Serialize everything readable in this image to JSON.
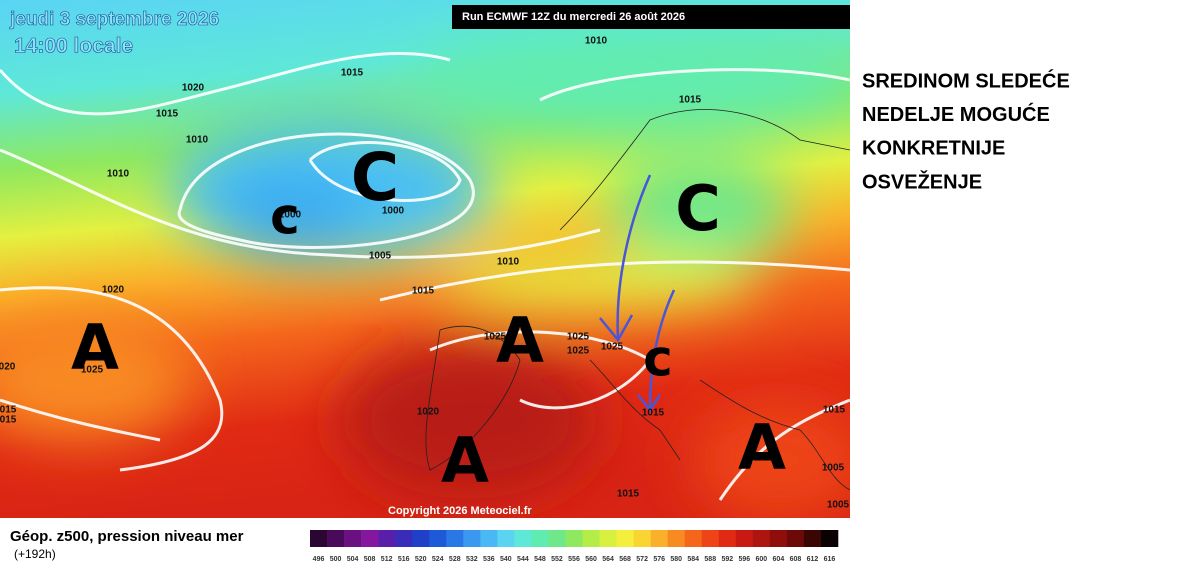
{
  "header": {
    "date": "jeudi 3 septembre 2026",
    "time": "14:00 locale",
    "run": "Run ECMWF 12Z du mercredi 26 août 2026"
  },
  "map": {
    "isobar_labels": [
      "1010",
      "1015",
      "1020",
      "1015",
      "1010",
      "1015",
      "1010",
      "1000",
      "1000",
      "1005",
      "1010",
      "1015",
      "1020",
      "1025",
      "1025",
      "1025",
      "1025",
      "1025",
      "020",
      "015",
      "015",
      "1020",
      "1015",
      "1015",
      "1005",
      "1015",
      "1005"
    ],
    "centers": [
      "C",
      "c",
      "C",
      "A",
      "A",
      "c",
      "A",
      "A"
    ],
    "copyright": "Copyright 2026 Meteociel.fr"
  },
  "note": {
    "lines": [
      "SREDINOM SLEDEĆE",
      "NEDELJE MOGUĆE",
      "KONKRETNIJE",
      "OSVEŽENJE"
    ]
  },
  "legend": {
    "title": "Géop. z500, pression niveau mer",
    "lead": "(+192h)",
    "values": [
      496,
      500,
      504,
      508,
      512,
      516,
      520,
      524,
      528,
      532,
      536,
      540,
      544,
      548,
      552,
      556,
      560,
      564,
      568,
      572,
      576,
      580,
      584,
      588,
      592,
      596,
      600,
      604,
      608,
      612,
      616
    ],
    "colors": [
      "#2b0633",
      "#4a0a5a",
      "#6a1080",
      "#85169e",
      "#5a1fa8",
      "#3a2cb8",
      "#2040c8",
      "#1e5ad8",
      "#2a78e6",
      "#3a98f0",
      "#4ab8f4",
      "#5ad4f0",
      "#5ee8d8",
      "#60ecb0",
      "#6ee88a",
      "#8ee860",
      "#b4ec48",
      "#d8f040",
      "#f4ee3c",
      "#fad432",
      "#fab02a",
      "#f88a22",
      "#f4661c",
      "#ee4418",
      "#e02a14",
      "#c81a12",
      "#ae1410",
      "#8e0e0c",
      "#6c0a08",
      "#3a0604",
      "#0a0202"
    ]
  }
}
